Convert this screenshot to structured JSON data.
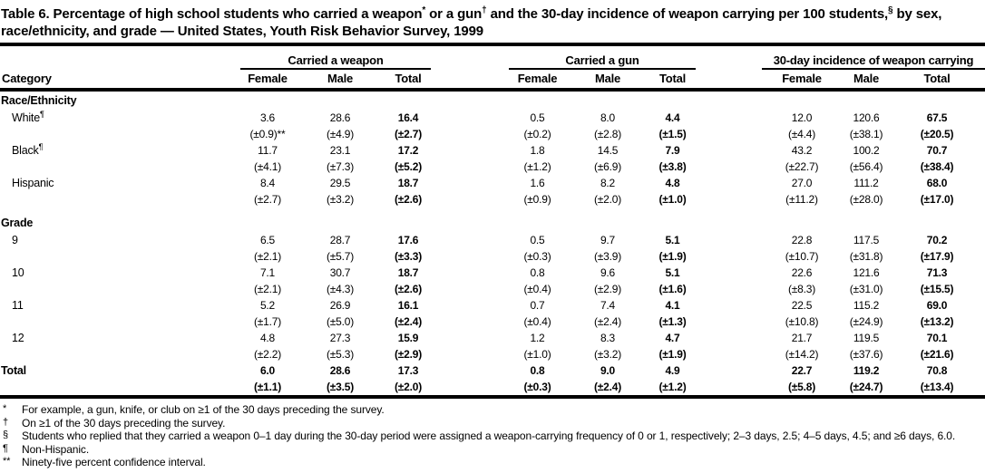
{
  "title": {
    "seg1": "Table 6. Percentage of high school students who carried a weapon",
    "sup1": "*",
    "seg2": " or a gun",
    "sup2": "†",
    "seg3": " and the 30-day incidence of weapon carrying per 100 students,",
    "sup3": "§",
    "seg4": " by sex, race/ethnicity, and grade — United States, Youth Risk Behavior Survey, 1999"
  },
  "table": {
    "category_header": "Category",
    "groups": [
      "Carried a weapon",
      "Carried a gun",
      "30-day incidence of weapon carrying"
    ],
    "sub_headers": [
      "Female",
      "Male",
      "Total"
    ],
    "sections": [
      {
        "label": "Race/Ethnicity",
        "rows": [
          {
            "label": "White",
            "sup": "¶",
            "values": [
              "3.6",
              "28.6",
              "16.4",
              "0.5",
              "8.0",
              "4.4",
              "12.0",
              "120.6",
              "67.5"
            ],
            "ci": [
              "(±0.9)**",
              "(±4.9)",
              "(±2.7)",
              "(±0.2)",
              "(±2.8)",
              "(±1.5)",
              "(±4.4)",
              "(±38.1)",
              "(±20.5)"
            ]
          },
          {
            "label": "Black",
            "sup": "¶",
            "values": [
              "11.7",
              "23.1",
              "17.2",
              "1.8",
              "14.5",
              "7.9",
              "43.2",
              "100.2",
              "70.7"
            ],
            "ci": [
              "(±4.1)",
              "(±7.3)",
              "(±5.2)",
              "(±1.2)",
              "(±6.9)",
              "(±3.8)",
              "(±22.7)",
              "(±56.4)",
              "(±38.4)"
            ]
          },
          {
            "label": "Hispanic",
            "sup": "",
            "values": [
              "8.4",
              "29.5",
              "18.7",
              "1.6",
              "8.2",
              "4.8",
              "27.0",
              "111.2",
              "68.0"
            ],
            "ci": [
              "(±2.7)",
              "(±3.2)",
              "(±2.6)",
              "(±0.9)",
              "(±2.0)",
              "(±1.0)",
              "(±11.2)",
              "(±28.0)",
              "(±17.0)"
            ]
          }
        ]
      },
      {
        "label": "Grade",
        "rows": [
          {
            "label": "9",
            "sup": "",
            "values": [
              "6.5",
              "28.7",
              "17.6",
              "0.5",
              "9.7",
              "5.1",
              "22.8",
              "117.5",
              "70.2"
            ],
            "ci": [
              "(±2.1)",
              "(±5.7)",
              "(±3.3)",
              "(±0.3)",
              "(±3.9)",
              "(±1.9)",
              "(±10.7)",
              "(±31.8)",
              "(±17.9)"
            ]
          },
          {
            "label": "10",
            "sup": "",
            "values": [
              "7.1",
              "30.7",
              "18.7",
              "0.8",
              "9.6",
              "5.1",
              "22.6",
              "121.6",
              "71.3"
            ],
            "ci": [
              "(±2.1)",
              "(±4.3)",
              "(±2.6)",
              "(±0.4)",
              "(±2.9)",
              "(±1.6)",
              "(±8.3)",
              "(±31.0)",
              "(±15.5)"
            ]
          },
          {
            "label": "11",
            "sup": "",
            "values": [
              "5.2",
              "26.9",
              "16.1",
              "0.7",
              "7.4",
              "4.1",
              "22.5",
              "115.2",
              "69.0"
            ],
            "ci": [
              "(±1.7)",
              "(±5.0)",
              "(±2.4)",
              "(±0.4)",
              "(±2.4)",
              "(±1.3)",
              "(±10.8)",
              "(±24.9)",
              "(±13.2)"
            ]
          },
          {
            "label": "12",
            "sup": "",
            "values": [
              "4.8",
              "27.3",
              "15.9",
              "1.2",
              "8.3",
              "4.7",
              "21.7",
              "119.5",
              "70.1"
            ],
            "ci": [
              "(±2.2)",
              "(±5.3)",
              "(±2.9)",
              "(±1.0)",
              "(±3.2)",
              "(±1.9)",
              "(±14.2)",
              "(±37.6)",
              "(±21.6)"
            ]
          }
        ]
      }
    ],
    "total": {
      "label": "Total",
      "sup": "",
      "values": [
        "6.0",
        "28.6",
        "17.3",
        "0.8",
        "9.0",
        "4.9",
        "22.7",
        "119.2",
        "70.8"
      ],
      "ci": [
        "(±1.1)",
        "(±3.5)",
        "(±2.0)",
        "(±0.3)",
        "(±2.4)",
        "(±1.2)",
        "(±5.8)",
        "(±24.7)",
        "(±13.4)"
      ]
    }
  },
  "footnotes": [
    {
      "marker": "*",
      "text": "For example, a gun, knife, or club on ≥1 of the 30 days preceding the survey."
    },
    {
      "marker": "†",
      "text": "On ≥1 of the 30 days preceding the survey."
    },
    {
      "marker": "§",
      "text": "Students who replied that they carried a weapon 0–1 day during the 30-day period were assigned a weapon-carrying frequency of 0 or 1, respectively; 2–3 days, 2.5; 4–5 days, 4.5; and ≥6 days, 6.0."
    },
    {
      "marker": "¶",
      "text": "Non-Hispanic."
    },
    {
      "marker": "**",
      "text": "Ninety-five percent confidence interval."
    }
  ],
  "colors": {
    "text": "#000000",
    "background": "#ffffff",
    "rule": "#000000"
  }
}
